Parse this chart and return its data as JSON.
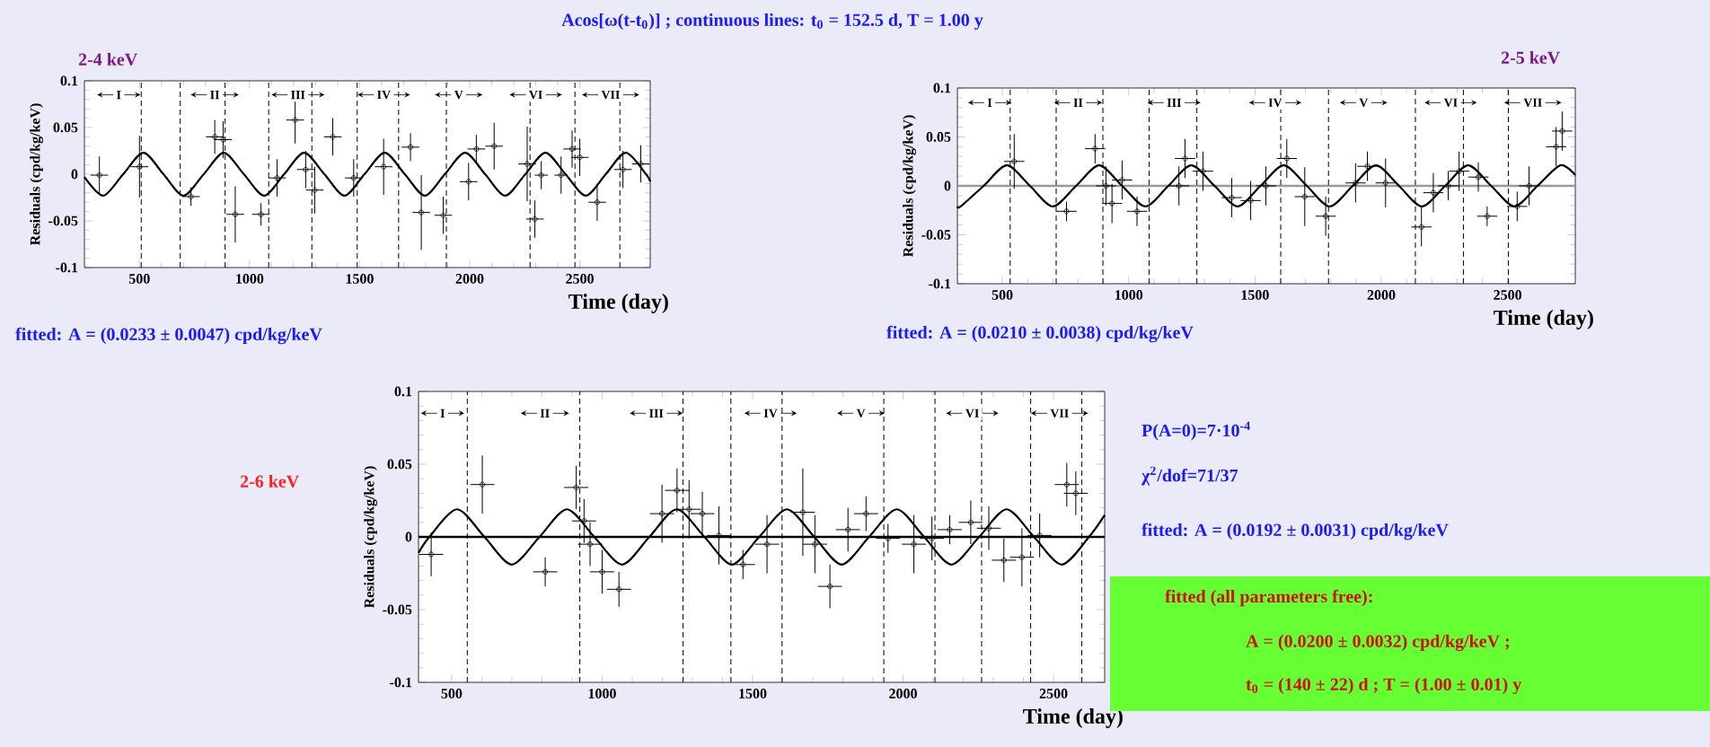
{
  "chart_data": [
    {
      "type": "scatter",
      "title": "Acos[ω(t-t$_{0}$)] ; continuous lines: t$_{0}$ = 152.5 d,  T = 1.00 y",
      "subtitle": "2-4 keV",
      "xlabel": "Time (day)",
      "ylabel": "Residuals (cpd/kg/keV)",
      "xlim": [
        250,
        2820
      ],
      "ylim": [
        -0.1,
        0.1
      ],
      "xticks": [
        500,
        1000,
        1500,
        2000,
        2500
      ],
      "yticks": [
        -0.1,
        -0.05,
        0,
        0.05,
        0.1
      ],
      "series": [
        {
          "marker": "circle",
          "color": "#000000",
          "x": [
            318,
            500,
            734,
            842,
            880,
            935,
            1052,
            1125,
            1207,
            1255,
            1296,
            1378,
            1473,
            1609,
            1731,
            1780,
            1880,
            1995,
            2030,
            2111,
            2261,
            2296,
            2325,
            2415,
            2465,
            2500,
            2579,
            2696,
            2777
          ],
          "values": [
            -0.001,
            0.008,
            -0.024,
            0.04,
            0.037,
            -0.043,
            -0.043,
            -0.004,
            0.058,
            0.005,
            -0.017,
            0.04,
            -0.004,
            0.008,
            0.029,
            -0.041,
            -0.044,
            -0.008,
            0.027,
            0.03,
            0.011,
            -0.048,
            -0.001,
            -0.001,
            0.027,
            0.018,
            -0.03,
            0.005,
            0.011
          ],
          "errors": [
            0.02,
            0.033,
            0.01,
            0.018,
            0.02,
            0.03,
            0.012,
            0.02,
            0.025,
            0.02,
            0.025,
            0.02,
            0.02,
            0.03,
            0.015,
            0.04,
            0.02,
            0.02,
            0.015,
            0.025,
            0.04,
            0.02,
            0.015,
            0.02,
            0.02,
            0.02,
            0.02,
            0.02,
            0.02
          ],
          "xerrors": [
            40,
            40,
            40,
            40,
            40,
            40,
            40,
            40,
            40,
            40,
            40,
            40,
            40,
            40,
            40,
            40,
            40,
            40,
            40,
            40,
            40,
            40,
            30,
            30,
            40,
            40,
            40,
            40,
            40
          ]
        },
        {
          "type": "line",
          "color": "#000000",
          "x": [
            250,
            335,
            426,
            518,
            609,
            700,
            792,
            883,
            974,
            1066,
            1157,
            1248,
            1340,
            1431,
            1522,
            1614,
            1705,
            1796,
            1887,
            1979,
            2070,
            2161,
            2253,
            2344,
            2435,
            2527,
            2618,
            2709,
            2801,
            2820
          ],
          "values": [
            -0.003,
            -0.023,
            0,
            0.023,
            0,
            -0.023,
            0,
            0.023,
            0,
            -0.023,
            0,
            0.023,
            0,
            -0.023,
            0,
            0.023,
            0,
            -0.023,
            0,
            0.023,
            0,
            -0.023,
            0,
            0.023,
            0,
            -0.023,
            0,
            0.023,
            0,
            -0.008
          ]
        }
      ],
      "ref_lines": [
        {
          "axis": "x",
          "value": 508,
          "line_style": "dashed"
        },
        {
          "axis": "x",
          "value": 685,
          "line_style": "dashed"
        },
        {
          "axis": "x",
          "value": 889,
          "line_style": "dashed"
        },
        {
          "axis": "x",
          "value": 1087,
          "line_style": "dashed"
        },
        {
          "axis": "x",
          "value": 1283,
          "line_style": "dashed"
        },
        {
          "axis": "x",
          "value": 1489,
          "line_style": "dashed"
        },
        {
          "axis": "x",
          "value": 1677,
          "line_style": "dashed"
        },
        {
          "axis": "x",
          "value": 1894,
          "line_style": "dashed"
        },
        {
          "axis": "x",
          "value": 2274,
          "line_style": "dashed"
        },
        {
          "axis": "x",
          "value": 2478,
          "line_style": "dashed"
        },
        {
          "axis": "x",
          "value": 2682,
          "line_style": "dashed"
        }
      ],
      "annotations": [
        {
          "text": "I",
          "x": 406,
          "y": 0.085
        },
        {
          "text": "II",
          "x": 842,
          "y": 0.085
        },
        {
          "text": "III",
          "x": 1220,
          "y": 0.085
        },
        {
          "text": "IV",
          "x": 1610,
          "y": 0.085
        },
        {
          "text": "V",
          "x": 1950,
          "y": 0.085
        },
        {
          "text": "VI",
          "x": 2300,
          "y": 0.085
        },
        {
          "text": "VII",
          "x": 2640,
          "y": 0.085
        },
        "fitted:  A = (0.0233 ± 0.0047) cpd/kg/keV"
      ]
    },
    {
      "type": "scatter",
      "subtitle": "2-5 keV",
      "xlabel": "Time (day)",
      "ylabel": "Residuals (cpd/kg/keV)",
      "xlim": [
        322,
        2768
      ],
      "ylim": [
        -0.1,
        0.1
      ],
      "xticks": [
        500,
        1000,
        1500,
        2000,
        2500
      ],
      "yticks": [
        -0.1,
        -0.05,
        0,
        0.05,
        0.1
      ],
      "series": [
        {
          "marker": "circle",
          "color": "#000000",
          "x": [
            547,
            754,
            867,
            910,
            934,
            974,
            1033,
            1199,
            1223,
            1294,
            1408,
            1483,
            1543,
            1626,
            1697,
            1780,
            1898,
            1945,
            2017,
            2159,
            2206,
            2265,
            2308,
            2384,
            2419,
            2538,
            2585,
            2692,
            2716
          ],
          "values": [
            0.025,
            -0.026,
            0.038,
            0,
            -0.018,
            0.006,
            -0.026,
            0,
            0.028,
            0.015,
            -0.012,
            -0.015,
            0,
            0.028,
            -0.011,
            -0.031,
            0.003,
            0.02,
            0.003,
            -0.042,
            -0.007,
            0,
            0.015,
            0.009,
            -0.031,
            -0.021,
            0,
            0.04,
            0.056
          ],
          "errors": [
            0.028,
            0.01,
            0.015,
            0.02,
            0.02,
            0.02,
            0.015,
            0.02,
            0.02,
            0.02,
            0.02,
            0.02,
            0.02,
            0.02,
            0.03,
            0.02,
            0.02,
            0.015,
            0.025,
            0.02,
            0.02,
            0.015,
            0.02,
            0.015,
            0.01,
            0.015,
            0.02,
            0.02,
            0.02
          ],
          "xerrors": [
            40,
            40,
            40,
            40,
            40,
            40,
            40,
            40,
            40,
            40,
            40,
            40,
            40,
            40,
            40,
            40,
            40,
            40,
            40,
            40,
            40,
            40,
            40,
            40,
            40,
            40,
            40,
            40,
            40
          ]
        },
        {
          "type": "line",
          "color": "#000000",
          "x": [
            322,
            335,
            426,
            518,
            609,
            700,
            792,
            883,
            974,
            1066,
            1157,
            1248,
            1340,
            1431,
            1522,
            1614,
            1705,
            1796,
            1887,
            1979,
            2070,
            2161,
            2253,
            2344,
            2435,
            2527,
            2618,
            2709,
            2768
          ],
          "values": [
            -0.021,
            -0.021,
            0,
            0.021,
            0,
            -0.021,
            0,
            0.021,
            0,
            -0.021,
            0,
            0.021,
            0,
            -0.021,
            0,
            0.021,
            0,
            -0.021,
            0,
            0.021,
            0,
            -0.021,
            0,
            0.021,
            0,
            -0.021,
            0,
            0.021,
            0.011
          ]
        }
      ],
      "ref_lines": [
        {
          "axis": "y",
          "value": 0,
          "color": "#999999",
          "line_style": "solid"
        },
        {
          "axis": "x",
          "value": 531,
          "line_style": "dashed"
        },
        {
          "axis": "x",
          "value": 713,
          "line_style": "dashed"
        },
        {
          "axis": "x",
          "value": 898,
          "line_style": "dashed"
        },
        {
          "axis": "x",
          "value": 1081,
          "line_style": "dashed"
        },
        {
          "axis": "x",
          "value": 1270,
          "line_style": "dashed"
        },
        {
          "axis": "x",
          "value": 1602,
          "line_style": "dashed"
        },
        {
          "axis": "x",
          "value": 1791,
          "line_style": "dashed"
        },
        {
          "axis": "x",
          "value": 2135,
          "line_style": "dashed"
        },
        {
          "axis": "x",
          "value": 2325,
          "line_style": "dashed"
        },
        {
          "axis": "x",
          "value": 2503,
          "line_style": "dashed"
        }
      ],
      "annotations": [
        {
          "text": "I",
          "x": 450,
          "y": 0.085
        },
        {
          "text": "II",
          "x": 800,
          "y": 0.085
        },
        {
          "text": "III",
          "x": 1180,
          "y": 0.085
        },
        {
          "text": "IV",
          "x": 1580,
          "y": 0.085
        },
        {
          "text": "V",
          "x": 1930,
          "y": 0.085
        },
        {
          "text": "VI",
          "x": 2275,
          "y": 0.085
        },
        {
          "text": "VII",
          "x": 2600,
          "y": 0.085
        },
        "fitted:  A = (0.0210 ± 0.0038) cpd/kg/keV"
      ]
    },
    {
      "type": "scatter",
      "subtitle": "2-6 keV",
      "xlabel": "Time (day)",
      "ylabel": "Residuals (cpd/kg/keV)",
      "xlim": [
        390,
        2670
      ],
      "ylim": [
        -0.1,
        0.1
      ],
      "xticks": [
        500,
        1000,
        1500,
        2000,
        2500
      ],
      "yticks": [
        -0.1,
        -0.05,
        0,
        0.05,
        0.1
      ],
      "series": [
        {
          "marker": "circle",
          "color": "#000000",
          "x": [
            432,
            602,
            811,
            914,
            940,
            960,
            1000,
            1056,
            1199,
            1249,
            1289,
            1333,
            1388,
            1468,
            1548,
            1667,
            1707,
            1757,
            1817,
            1877,
            1950,
            2036,
            2096,
            2155,
            2225,
            2285,
            2335,
            2395,
            2454,
            2544,
            2574
          ],
          "values": [
            -0.012,
            0.036,
            -0.024,
            0.034,
            0.011,
            -0.005,
            -0.024,
            -0.036,
            0.016,
            0.032,
            0.019,
            0.016,
            0.001,
            -0.019,
            -0.005,
            0.017,
            -0.005,
            -0.034,
            0.005,
            0.016,
            -0.001,
            -0.005,
            -0.001,
            0.005,
            0.01,
            0.006,
            -0.016,
            -0.014,
            0.001,
            0.036,
            0.03
          ],
          "errors": [
            0.015,
            0.02,
            0.01,
            0.015,
            0.015,
            0.015,
            0.015,
            0.012,
            0.02,
            0.015,
            0.02,
            0.015,
            0.02,
            0.01,
            0.02,
            0.03,
            0.02,
            0.015,
            0.015,
            0.012,
            0.01,
            0.02,
            0.015,
            0.01,
            0.015,
            0.015,
            0.015,
            0.02,
            0.015,
            0.015,
            0.015
          ],
          "xerrors": [
            40,
            40,
            40,
            40,
            40,
            40,
            40,
            40,
            40,
            40,
            40,
            40,
            40,
            40,
            40,
            40,
            40,
            40,
            40,
            40,
            40,
            40,
            40,
            40,
            40,
            40,
            40,
            40,
            40,
            40,
            40
          ]
        },
        {
          "type": "line",
          "color": "#000000",
          "x": [
            390,
            426,
            518,
            609,
            700,
            792,
            883,
            974,
            1066,
            1157,
            1248,
            1340,
            1431,
            1522,
            1614,
            1705,
            1796,
            1887,
            1979,
            2070,
            2161,
            2253,
            2344,
            2435,
            2527,
            2618,
            2670
          ],
          "values": [
            -0.011,
            0,
            0.019,
            0,
            -0.019,
            0,
            0.019,
            0,
            -0.019,
            0,
            0.019,
            0,
            -0.019,
            0,
            0.019,
            0,
            -0.019,
            0,
            0.019,
            0,
            -0.019,
            0,
            0.019,
            0,
            -0.019,
            0,
            0.015
          ]
        }
      ],
      "ref_lines": [
        {
          "axis": "y",
          "value": 0,
          "color": "#000000",
          "line_style": "solid"
        },
        {
          "axis": "x",
          "value": 552,
          "line_style": "dashed"
        },
        {
          "axis": "x",
          "value": 926,
          "line_style": "dashed"
        },
        {
          "axis": "x",
          "value": 1269,
          "line_style": "dashed"
        },
        {
          "axis": "x",
          "value": 1428,
          "line_style": "dashed"
        },
        {
          "axis": "x",
          "value": 1598,
          "line_style": "dashed"
        },
        {
          "axis": "x",
          "value": 1936,
          "line_style": "dashed"
        },
        {
          "axis": "x",
          "value": 2106,
          "line_style": "dashed"
        },
        {
          "axis": "x",
          "value": 2261,
          "line_style": "dashed"
        },
        {
          "axis": "x",
          "value": 2424,
          "line_style": "dashed"
        },
        {
          "axis": "x",
          "value": 2594,
          "line_style": "dashed"
        }
      ],
      "annotations": [
        {
          "text": "I",
          "x": 470,
          "y": 0.085
        },
        {
          "text": "II",
          "x": 810,
          "y": 0.085
        },
        {
          "text": "III",
          "x": 1180,
          "y": 0.085
        },
        {
          "text": "IV",
          "x": 1560,
          "y": 0.085
        },
        {
          "text": "V",
          "x": 1860,
          "y": 0.085
        },
        {
          "text": "VI",
          "x": 2230,
          "y": 0.085
        },
        {
          "text": "VII",
          "x": 2520,
          "y": 0.085
        },
        "P(A=0)=7·10$^{-4}$",
        "χ$^{2}$/dof=71/37",
        "fitted:  A = (0.0192 ± 0.0031) cpd/kg/keV",
        "fitted (all parameters free):",
        "A = (0.0200 ± 0.0032) cpd/kg/keV    ;",
        "t$_{0}$ = (140 ± 22) d  ;  T = (1.00 ± 0.01) y"
      ]
    }
  ]
}
